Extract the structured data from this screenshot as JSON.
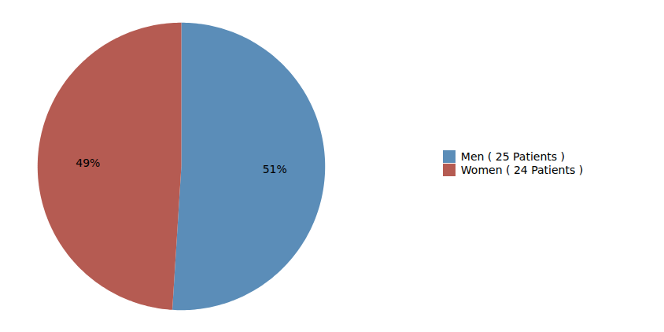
{
  "chart_data": {
    "type": "pie",
    "categories": [
      "Men ( 25 Patients )",
      "Women ( 24 Patients )"
    ],
    "values": [
      51,
      49
    ],
    "value_labels": [
      "51%",
      "49%"
    ],
    "colors": [
      "#5B8DB8",
      "#B55B52"
    ],
    "data_labels": true,
    "legend": "right"
  }
}
